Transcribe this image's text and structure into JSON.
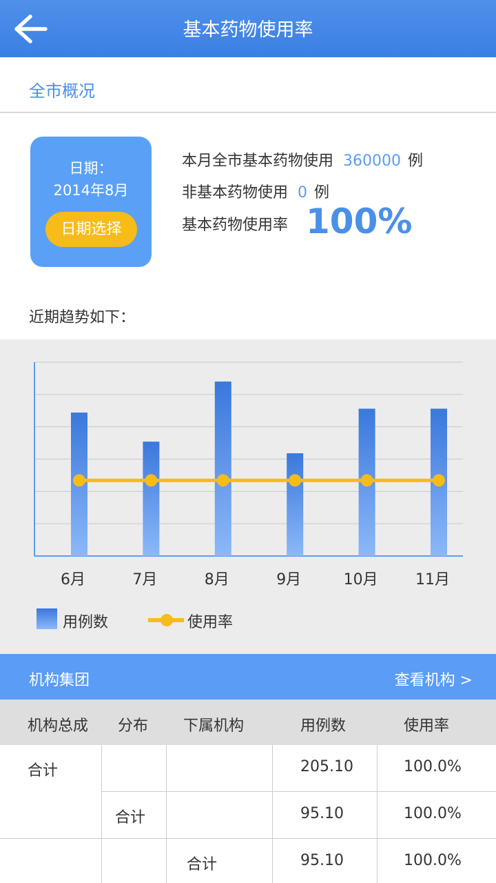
{
  "header": {
    "title": "基本药物使用率",
    "back_icon": "arrow-left-icon"
  },
  "overview": {
    "section_title": "全市概况",
    "date_label": "日期：",
    "date_value": "2014年8月",
    "date_button": "日期选择",
    "stat1_label": "本月全市基本药物使用",
    "stat1_value": "360000",
    "stat1_unit": "例",
    "stat2_label": "非基本药物使用",
    "stat2_value": "0",
    "stat2_unit": "例",
    "stat3_label": "基本药物使用率",
    "stat3_value": "100%"
  },
  "trend": {
    "label": "近期趋势如下：",
    "legend_bar": "用例数",
    "legend_line": "使用率"
  },
  "chart_data": {
    "type": "bar",
    "categories": [
      "6月",
      "7月",
      "8月",
      "9月",
      "10月",
      "11月"
    ],
    "series": [
      {
        "name": "用例数",
        "type": "bar",
        "values": [
          74,
          59,
          90,
          53,
          76,
          76
        ]
      },
      {
        "name": "使用率",
        "type": "line",
        "values": [
          39,
          39,
          39,
          39,
          39,
          39
        ]
      }
    ],
    "ylim": [
      0,
      100
    ],
    "grid": true,
    "legend": "bottom-left",
    "colors": {
      "bar_top": "#3a78dc",
      "bar_bottom": "#8cb8f8",
      "line": "#f7bb1a"
    }
  },
  "org": {
    "title": "机构集团",
    "link": "查看机构 >",
    "columns": [
      "机构总成",
      "分布",
      "下属机构",
      "用例数",
      "使用率"
    ],
    "rows": [
      {
        "level": 0,
        "name": "合计",
        "cases": "205.10",
        "rate": "100.0%"
      },
      {
        "level": 1,
        "name": "合计",
        "cases": "95.10",
        "rate": "100.0%"
      },
      {
        "level": 2,
        "name": "合计",
        "cases": "95.10",
        "rate": "100.0%"
      }
    ]
  },
  "colors": {
    "primary": "#4a90e8",
    "accent": "#f7bb1a",
    "header": "#3a7fe3"
  }
}
